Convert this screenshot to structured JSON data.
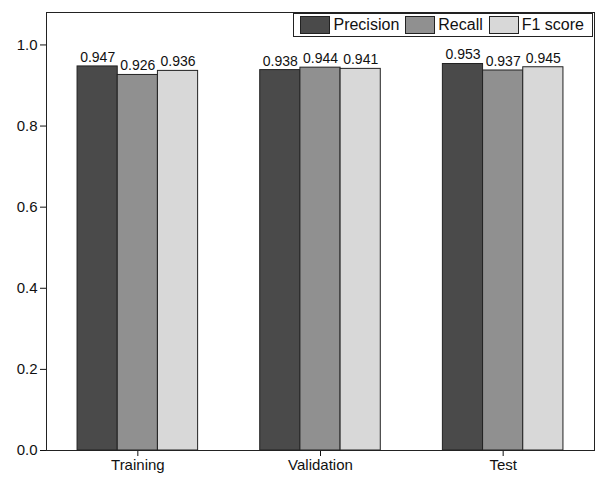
{
  "chart_data": {
    "type": "bar",
    "categories": [
      "Training",
      "Validation",
      "Test"
    ],
    "series": [
      {
        "name": "Precision",
        "color": "#4a4a4a",
        "values": [
          0.947,
          0.938,
          0.953
        ]
      },
      {
        "name": "Recall",
        "color": "#909090",
        "values": [
          0.926,
          0.944,
          0.937
        ]
      },
      {
        "name": "F1 score",
        "color": "#d8d8d8",
        "values": [
          0.936,
          0.941,
          0.945
        ]
      }
    ],
    "ylim": [
      0,
      1.08
    ],
    "yticks": [
      {
        "value": 0,
        "label": "0.0"
      },
      {
        "value": 0.2,
        "label": "0.2"
      },
      {
        "value": 0.4,
        "label": "0.4"
      },
      {
        "value": 0.6,
        "label": "0.6"
      },
      {
        "value": 0.8,
        "label": "0.8"
      },
      {
        "value": 1,
        "label": "1.0"
      }
    ],
    "grid": false,
    "legend": "top-right",
    "data_labels": true
  }
}
